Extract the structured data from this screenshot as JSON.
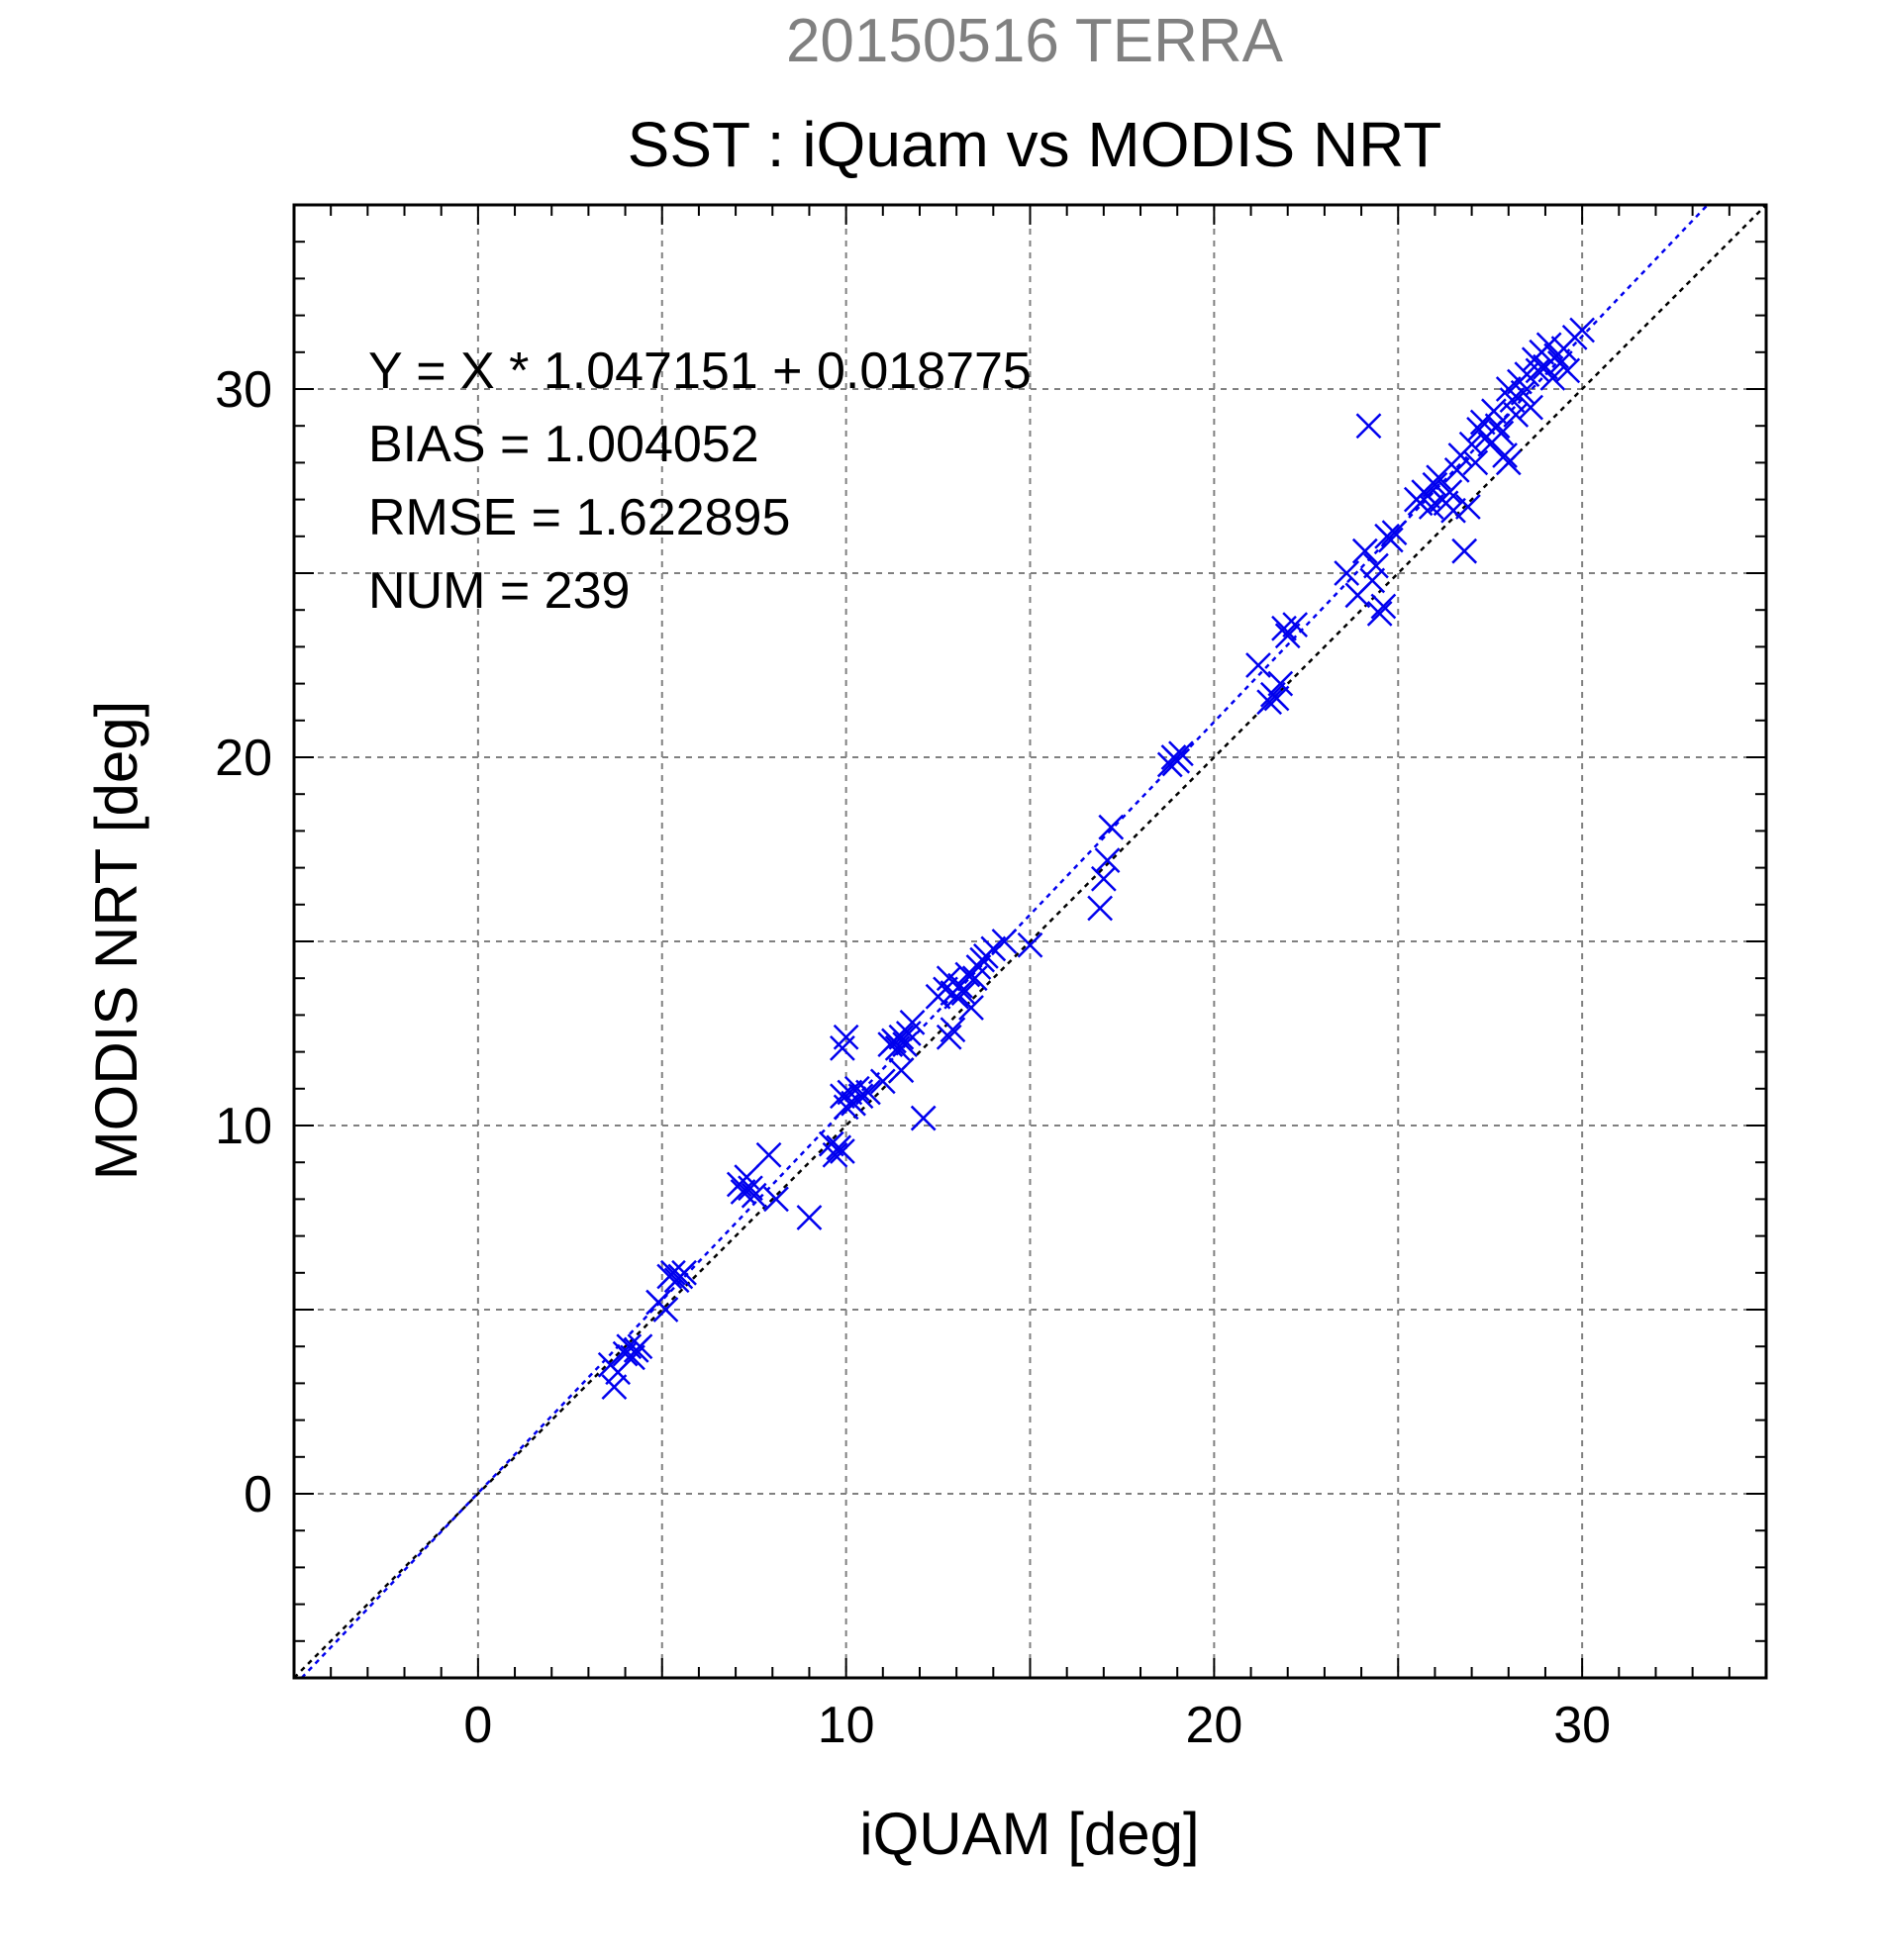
{
  "chart_data": {
    "type": "scatter",
    "supertitle": "20150516 TERRA",
    "title": "SST : iQuam vs MODIS NRT",
    "xlabel": "iQUAM [deg]",
    "ylabel": "MODIS NRT [deg]",
    "xlim": [
      -5,
      35
    ],
    "ylim": [
      -5,
      35
    ],
    "xticks": [
      0,
      10,
      20,
      30
    ],
    "yticks": [
      0,
      10,
      20,
      30
    ],
    "grid": true,
    "annotations": [
      "Y = X * 1.047151 + 0.018775",
      "BIAS = 1.004052",
      "RMSE = 1.622895",
      "NUM = 239"
    ],
    "colors": {
      "points": "#0000ee",
      "fit_line": "#0000ee",
      "identity_line": "#000000",
      "supertitle": "#808080"
    },
    "fit": {
      "slope": 1.047151,
      "intercept": 0.018775
    },
    "series": [
      {
        "marker": "x",
        "points": [
          [
            3.6,
            3.5
          ],
          [
            3.7,
            2.9
          ],
          [
            3.8,
            3.3
          ],
          [
            4.0,
            3.8
          ],
          [
            4.1,
            4.0
          ],
          [
            4.2,
            3.7
          ],
          [
            4.3,
            3.9
          ],
          [
            4.4,
            4.0
          ],
          [
            4.9,
            5.2
          ],
          [
            5.1,
            5.0
          ],
          [
            5.2,
            5.9
          ],
          [
            5.3,
            6.0
          ],
          [
            5.4,
            5.8
          ],
          [
            5.5,
            5.9
          ],
          [
            5.6,
            6.0
          ],
          [
            7.1,
            8.4
          ],
          [
            7.2,
            8.2
          ],
          [
            7.3,
            8.6
          ],
          [
            7.4,
            8.3
          ],
          [
            7.5,
            8.1
          ],
          [
            7.9,
            9.2
          ],
          [
            8.1,
            8.0
          ],
          [
            9.0,
            7.5
          ],
          [
            9.6,
            9.5
          ],
          [
            9.7,
            9.2
          ],
          [
            9.8,
            9.4
          ],
          [
            9.9,
            9.3
          ],
          [
            9.9,
            12.1
          ],
          [
            10.0,
            12.4
          ],
          [
            9.9,
            10.8
          ],
          [
            10.0,
            10.5
          ],
          [
            10.1,
            10.9
          ],
          [
            10.2,
            10.6
          ],
          [
            10.3,
            11.0
          ],
          [
            10.4,
            10.8
          ],
          [
            10.6,
            10.9
          ],
          [
            11.0,
            11.2
          ],
          [
            11.2,
            12.2
          ],
          [
            11.3,
            12.3
          ],
          [
            11.4,
            12.1
          ],
          [
            11.5,
            12.4
          ],
          [
            11.6,
            12.2
          ],
          [
            11.7,
            12.5
          ],
          [
            11.8,
            12.8
          ],
          [
            11.5,
            11.5
          ],
          [
            12.1,
            10.2
          ],
          [
            12.5,
            13.5
          ],
          [
            12.7,
            13.7
          ],
          [
            12.8,
            14.0
          ],
          [
            12.9,
            13.6
          ],
          [
            12.8,
            12.4
          ],
          [
            12.9,
            12.6
          ],
          [
            13.0,
            13.5
          ],
          [
            13.1,
            13.8
          ],
          [
            13.2,
            13.6
          ],
          [
            13.3,
            14.1
          ],
          [
            13.4,
            13.2
          ],
          [
            13.5,
            14.0
          ],
          [
            13.6,
            14.3
          ],
          [
            13.7,
            14.5
          ],
          [
            13.8,
            14.6
          ],
          [
            14.0,
            14.8
          ],
          [
            14.3,
            15.0
          ],
          [
            15.0,
            14.9
          ],
          [
            16.9,
            15.9
          ],
          [
            17.0,
            16.7
          ],
          [
            17.1,
            17.2
          ],
          [
            17.2,
            18.1
          ],
          [
            18.8,
            19.8
          ],
          [
            18.9,
            20.0
          ],
          [
            19.0,
            19.9
          ],
          [
            19.1,
            20.1
          ],
          [
            21.2,
            22.5
          ],
          [
            21.5,
            21.5
          ],
          [
            21.6,
            21.7
          ],
          [
            21.7,
            21.6
          ],
          [
            21.8,
            22.0
          ],
          [
            21.9,
            23.5
          ],
          [
            22.0,
            23.3
          ],
          [
            22.2,
            23.6
          ],
          [
            23.6,
            25.0
          ],
          [
            23.9,
            24.4
          ],
          [
            24.1,
            25.6
          ],
          [
            24.2,
            29.0
          ],
          [
            24.3,
            24.8
          ],
          [
            24.4,
            25.2
          ],
          [
            24.5,
            23.9
          ],
          [
            24.6,
            24.1
          ],
          [
            24.7,
            26.0
          ],
          [
            24.8,
            25.9
          ],
          [
            24.9,
            26.1
          ],
          [
            25.5,
            27.0
          ],
          [
            25.6,
            26.9
          ],
          [
            25.7,
            27.2
          ],
          [
            25.8,
            27.1
          ],
          [
            25.9,
            26.8
          ],
          [
            26.0,
            27.4
          ],
          [
            26.1,
            27.6
          ],
          [
            26.2,
            27.0
          ],
          [
            26.3,
            26.9
          ],
          [
            26.4,
            27.2
          ],
          [
            26.5,
            26.7
          ],
          [
            26.6,
            27.8
          ],
          [
            26.7,
            28.2
          ],
          [
            26.8,
            25.6
          ],
          [
            26.9,
            26.8
          ],
          [
            27.0,
            28.5
          ],
          [
            27.1,
            28.0
          ],
          [
            27.2,
            28.9
          ],
          [
            27.3,
            29.1
          ],
          [
            27.4,
            28.7
          ],
          [
            27.5,
            28.5
          ],
          [
            27.6,
            29.4
          ],
          [
            27.7,
            29.0
          ],
          [
            27.8,
            28.8
          ],
          [
            27.9,
            28.2
          ],
          [
            28.0,
            28.0
          ],
          [
            28.0,
            30.0
          ],
          [
            28.1,
            29.7
          ],
          [
            28.2,
            29.3
          ],
          [
            28.3,
            30.2
          ],
          [
            28.4,
            29.9
          ],
          [
            28.5,
            30.4
          ],
          [
            28.6,
            29.5
          ],
          [
            28.7,
            30.8
          ],
          [
            28.8,
            30.5
          ],
          [
            28.9,
            31.0
          ],
          [
            29.0,
            30.6
          ],
          [
            29.1,
            31.2
          ],
          [
            29.2,
            30.3
          ],
          [
            29.3,
            30.9
          ],
          [
            29.4,
            30.7
          ],
          [
            29.5,
            31.1
          ],
          [
            29.6,
            30.5
          ],
          [
            29.8,
            31.4
          ],
          [
            30.0,
            31.6
          ]
        ]
      }
    ]
  }
}
